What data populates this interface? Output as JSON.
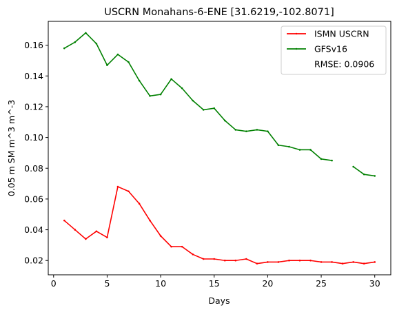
{
  "chart_data": {
    "type": "line",
    "title": "USCRN Monahans-6-ENE [31.6219,-102.8071]",
    "xlabel": "Days",
    "ylabel": "0.05 m SM m^3 m^-3",
    "xlim": [
      -0.5,
      31.5
    ],
    "ylim": [
      0.0107,
      0.1755
    ],
    "x_ticks": [
      0,
      5,
      10,
      15,
      20,
      25,
      30
    ],
    "x_tick_labels": [
      "0",
      "5",
      "10",
      "15",
      "20",
      "25",
      "30"
    ],
    "y_ticks": [
      0.02,
      0.04,
      0.06,
      0.08,
      0.1,
      0.12,
      0.14,
      0.16
    ],
    "y_tick_labels": [
      "0.02",
      "0.04",
      "0.06",
      "0.08",
      "0.10",
      "0.12",
      "0.14",
      "0.16"
    ],
    "grid": false,
    "legend_position": "top-right",
    "annotation": "RMSE: 0.0906",
    "x": [
      1,
      2,
      3,
      4,
      5,
      6,
      7,
      8,
      9,
      10,
      11,
      12,
      13,
      14,
      15,
      16,
      17,
      18,
      19,
      20,
      21,
      22,
      23,
      24,
      25,
      26,
      27,
      28,
      29,
      30
    ],
    "series": [
      {
        "name": "ISMN USCRN",
        "color": "#ff0000",
        "values": [
          0.046,
          0.04,
          0.034,
          0.039,
          0.035,
          0.068,
          0.065,
          0.057,
          0.046,
          0.036,
          0.029,
          0.029,
          0.024,
          0.021,
          0.021,
          0.02,
          0.02,
          0.021,
          0.018,
          0.019,
          0.019,
          0.02,
          0.02,
          0.02,
          0.019,
          0.019,
          0.018,
          0.019,
          0.018,
          0.019
        ]
      },
      {
        "name": "GFSv16",
        "color": "#008000",
        "values": [
          0.158,
          0.162,
          0.168,
          0.161,
          0.147,
          0.154,
          0.149,
          0.137,
          0.127,
          0.128,
          0.138,
          0.132,
          0.124,
          0.118,
          0.119,
          0.111,
          0.105,
          0.104,
          0.105,
          0.104,
          0.095,
          0.094,
          0.092,
          0.092,
          0.086,
          0.085,
          null,
          0.081,
          0.076,
          0.075
        ]
      }
    ]
  }
}
